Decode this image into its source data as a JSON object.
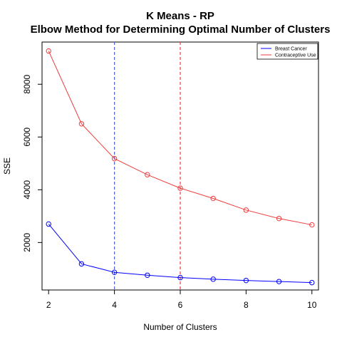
{
  "chart_data": {
    "type": "line",
    "title": "K Means - RP",
    "subtitle": "Elbow Method for Determining Optimal Number of Clusters",
    "xlabel": "Number of Clusters",
    "ylabel": "SSE",
    "x": [
      2,
      3,
      4,
      5,
      6,
      7,
      8,
      9,
      10
    ],
    "xlim": [
      1.8,
      10.2
    ],
    "ylim": [
      200,
      9600
    ],
    "xticks": [
      2,
      4,
      6,
      8,
      10
    ],
    "yticks": [
      2000,
      4000,
      6000,
      8000
    ],
    "grid": false,
    "legend_position": "top-right",
    "series": [
      {
        "name": "Breast Cancer",
        "color": "#0000ff",
        "values": [
          2700,
          1190,
          870,
          760,
          670,
          610,
          560,
          520,
          480
        ]
      },
      {
        "name": "Contraceptive Use",
        "color": "#ee3b3b",
        "values": [
          9260,
          6500,
          5180,
          4570,
          4060,
          3670,
          3230,
          2910,
          2670
        ]
      }
    ],
    "reference_lines": [
      {
        "x": 4,
        "color": "#4f5fd6",
        "style": "dashed"
      },
      {
        "x": 6,
        "color": "#ee3b3b",
        "style": "dashed"
      }
    ]
  }
}
